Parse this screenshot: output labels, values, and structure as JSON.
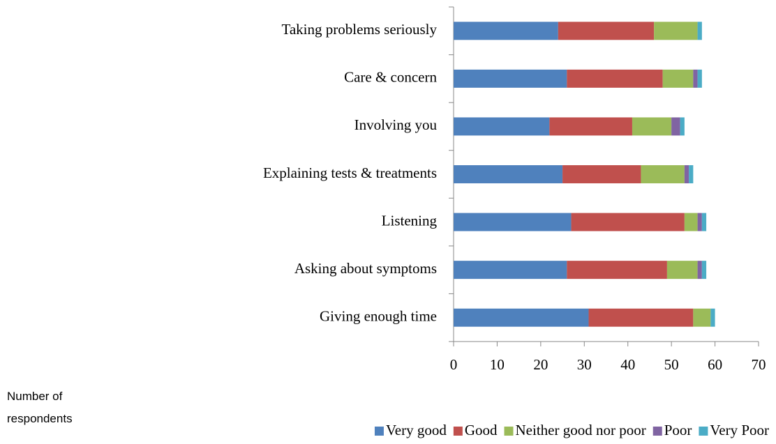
{
  "chart_data": {
    "type": "stacked_barh",
    "categories": [
      "Taking problems seriously",
      "Care & concern",
      "Involving you",
      "Explaining tests & treatments",
      "Listening",
      "Asking about symptoms",
      "Giving enough time"
    ],
    "series": [
      {
        "name": "Very good",
        "color": "#4f81bd",
        "values": [
          24,
          26,
          22,
          25,
          27,
          26,
          31
        ]
      },
      {
        "name": "Good",
        "color": "#c0504d",
        "values": [
          22,
          22,
          19,
          18,
          26,
          23,
          24
        ]
      },
      {
        "name": "Neither good nor poor",
        "color": "#9bbb59",
        "values": [
          10,
          7,
          9,
          10,
          3,
          7,
          4
        ]
      },
      {
        "name": "Poor",
        "color": "#8064a2",
        "values": [
          0,
          1,
          2,
          1,
          1,
          1,
          0
        ]
      },
      {
        "name": "Very Poor",
        "color": "#4bacc6",
        "values": [
          1,
          1,
          1,
          1,
          1,
          1,
          1
        ]
      }
    ],
    "xlabel": "Number of respondents",
    "xlim": [
      0,
      70
    ],
    "xticks": [
      0,
      10,
      20,
      30,
      40,
      50,
      60,
      70
    ],
    "legend": "bottom"
  }
}
